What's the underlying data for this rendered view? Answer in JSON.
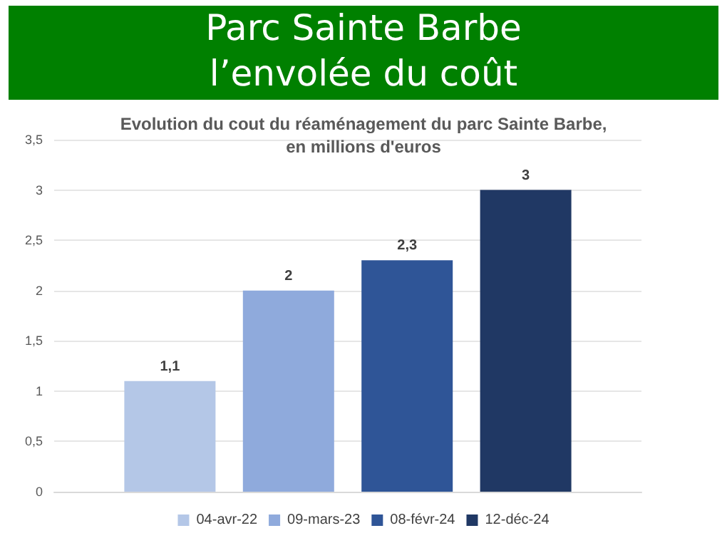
{
  "chart_data": {
    "type": "bar",
    "title": "Parc Sainte Barbe\nl’envolée du coût",
    "subtitle": "Evolution du cout du réaménagement du parc Sainte Barbe,\nen millions d'euros",
    "categories": [
      null
    ],
    "series": [
      {
        "name": "04-avr-22",
        "color": "#b4c7e7",
        "values": [
          1.1
        ],
        "value_labels": [
          "1,1"
        ]
      },
      {
        "name": "09-mars-23",
        "color": "#8faadc",
        "values": [
          2
        ],
        "value_labels": [
          "2"
        ]
      },
      {
        "name": "08-févr-24",
        "color": "#2f5597",
        "values": [
          2.3
        ],
        "value_labels": [
          "2,3"
        ]
      },
      {
        "name": "12-déc-24",
        "color": "#203864",
        "values": [
          3
        ],
        "value_labels": [
          "3"
        ]
      }
    ],
    "ylim": [
      0,
      3.5
    ],
    "yticks": [
      0,
      {
        "value": 0.5,
        "label": "0,5"
      },
      1,
      {
        "value": 1.5,
        "label": "1,5"
      },
      2,
      {
        "value": 2.5,
        "label": "2,5"
      },
      3,
      {
        "value": 3.5,
        "label": "3,5"
      }
    ],
    "grid": "y",
    "legend": "bottom"
  }
}
